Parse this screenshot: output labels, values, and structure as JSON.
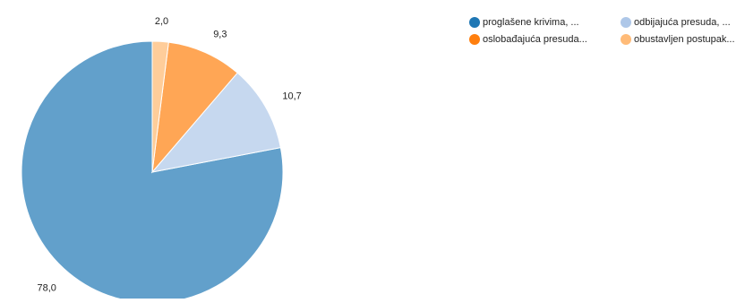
{
  "chart_data": {
    "type": "pie",
    "slices": [
      {
        "label": "proglašene krivima, ...",
        "value": 78.0,
        "display": "78,0",
        "color": "#62a0cb"
      },
      {
        "label": "odbijajuća presuda, ...",
        "value": 10.7,
        "display": "10,7",
        "color": "#c6d8ef"
      },
      {
        "label": "oslobađajuća presuda...",
        "value": 9.3,
        "display": "9,3",
        "color": "#ffa655"
      },
      {
        "label": "obustavljen postupak...",
        "value": 2.0,
        "display": "2,0",
        "color": "#ffcd9a"
      }
    ],
    "legend": {
      "placement": "top-right",
      "entries": [
        {
          "label": "proglašene krivima, ...",
          "color": "#1f77b4"
        },
        {
          "label": "odbijajuća presuda, ...",
          "color": "#aec7e8"
        },
        {
          "label": "oslobađajuća presuda...",
          "color": "#ff7f0e"
        },
        {
          "label": "obustavljen postupak...",
          "color": "#ffbb78"
        }
      ]
    }
  }
}
